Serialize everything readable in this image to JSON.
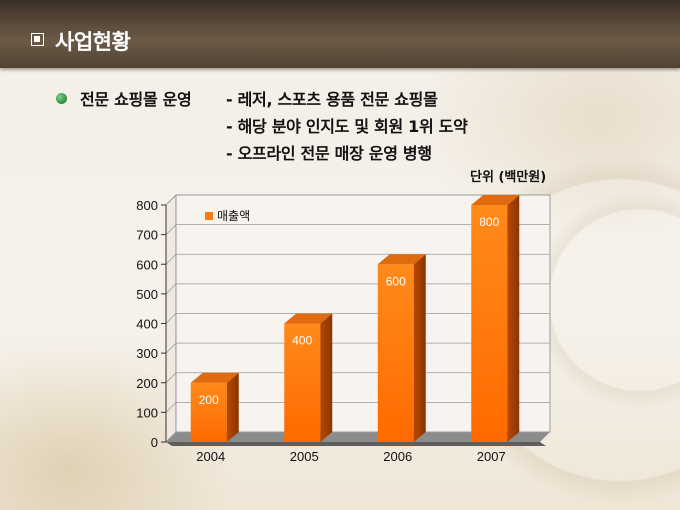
{
  "header": {
    "title": "사업현황"
  },
  "content": {
    "bullet_label": "전문 쇼핑몰 운영",
    "items": [
      "- 레저, 스포츠 용품 전문 쇼핑몰",
      "- 해당 분야 인지도 및 회원 1위 도약",
      "- 오프라인 전문 매장 운영 병행"
    ]
  },
  "chart_data": {
    "type": "bar",
    "unit_label": "단위 (백만원)",
    "categories": [
      "2004",
      "2005",
      "2006",
      "2007"
    ],
    "series": [
      {
        "name": "매출액",
        "values": [
          200,
          400,
          600,
          800
        ],
        "color": "#ff7a10"
      }
    ],
    "y_ticks": [
      "0",
      "100",
      "200",
      "300",
      "400",
      "500",
      "600",
      "700",
      "800"
    ],
    "ylim": [
      0,
      800
    ],
    "grid": true,
    "legend": "top-left"
  }
}
